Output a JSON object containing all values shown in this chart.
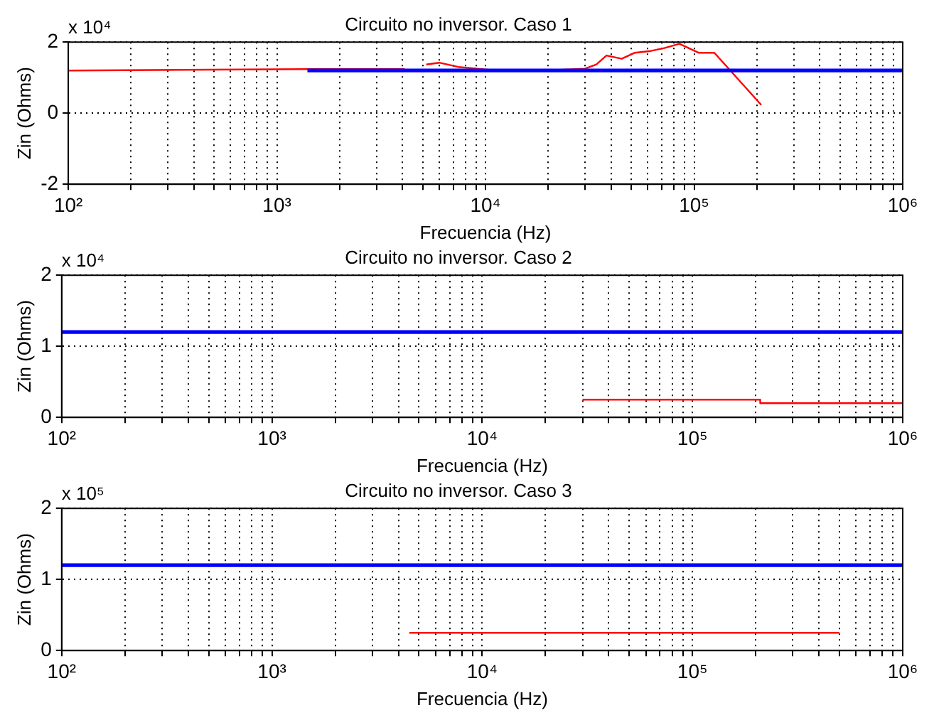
{
  "chart_data": [
    {
      "type": "line",
      "title": "Circuito no inversor. Caso 1",
      "xlabel": "Frecuencia (Hz)",
      "ylabel": "Zin (Ohms)",
      "annotations": [
        "x 10⁴"
      ],
      "log": "x",
      "grid": true,
      "legend": false,
      "marker": "none",
      "line_style": "solid",
      "xlim": [
        100,
        1000000
      ],
      "xticks": [
        {
          "value": 100,
          "label": "10²"
        },
        {
          "value": 200,
          "label": null
        },
        {
          "value": 300,
          "label": null
        },
        {
          "value": 400,
          "label": null
        },
        {
          "value": 500,
          "label": null
        },
        {
          "value": 600,
          "label": null
        },
        {
          "value": 700,
          "label": null
        },
        {
          "value": 800,
          "label": null
        },
        {
          "value": 900,
          "label": null
        },
        {
          "value": 1000,
          "label": "10³"
        },
        {
          "value": 2000,
          "label": null
        },
        {
          "value": 3000,
          "label": null
        },
        {
          "value": 4000,
          "label": null
        },
        {
          "value": 5000,
          "label": null
        },
        {
          "value": 6000,
          "label": null
        },
        {
          "value": 7000,
          "label": null
        },
        {
          "value": 8000,
          "label": null
        },
        {
          "value": 9000,
          "label": null
        },
        {
          "value": 10000,
          "label": "10⁴"
        },
        {
          "value": 20000,
          "label": null
        },
        {
          "value": 30000,
          "label": null
        },
        {
          "value": 40000,
          "label": null
        },
        {
          "value": 50000,
          "label": null
        },
        {
          "value": 60000,
          "label": null
        },
        {
          "value": 70000,
          "label": null
        },
        {
          "value": 80000,
          "label": null
        },
        {
          "value": 90000,
          "label": null
        },
        {
          "value": 100000,
          "label": "10⁵"
        },
        {
          "value": 200000,
          "label": null
        },
        {
          "value": 300000,
          "label": null
        },
        {
          "value": 400000,
          "label": null
        },
        {
          "value": 500000,
          "label": null
        },
        {
          "value": 600000,
          "label": null
        },
        {
          "value": 700000,
          "label": null
        },
        {
          "value": 800000,
          "label": null
        },
        {
          "value": 900000,
          "label": null
        },
        {
          "value": 1000000,
          "label": "10⁶"
        }
      ],
      "ylim": [
        -2,
        2
      ],
      "yticks": [
        -2,
        0,
        2
      ],
      "series": [
        {
          "color": "#0000ff",
          "x": [
            1400,
            1000000
          ],
          "values": [
            1.2,
            1.2
          ]
        },
        {
          "color": "#ff0000",
          "x": [
            100,
            1400,
            4100,
            4600,
            5200,
            6000,
            7400,
            11300,
            19000,
            30000,
            34000,
            38000,
            45000,
            52000,
            62000,
            72000,
            85000,
            105000,
            125000,
            210000
          ],
          "values": [
            1.2,
            1.24,
            1.24,
            null,
            1.37,
            1.42,
            1.3,
            1.2,
            1.2,
            1.25,
            1.37,
            1.62,
            1.53,
            1.7,
            1.75,
            1.83,
            1.95,
            1.7,
            1.7,
            0.23
          ]
        }
      ]
    },
    {
      "type": "line",
      "title": "Circuito no inversor. Caso 2",
      "xlabel": "Frecuencia (Hz)",
      "ylabel": "Zin (Ohms)",
      "annotations": [
        "x 10⁴"
      ],
      "log": "x",
      "grid": true,
      "legend": false,
      "marker": "none",
      "line_style": "solid",
      "xlim": [
        100,
        1000000
      ],
      "xticks": [
        {
          "value": 100,
          "label": "10²"
        },
        {
          "value": 200,
          "label": null
        },
        {
          "value": 300,
          "label": null
        },
        {
          "value": 400,
          "label": null
        },
        {
          "value": 500,
          "label": null
        },
        {
          "value": 600,
          "label": null
        },
        {
          "value": 700,
          "label": null
        },
        {
          "value": 800,
          "label": null
        },
        {
          "value": 900,
          "label": null
        },
        {
          "value": 1000,
          "label": "10³"
        },
        {
          "value": 2000,
          "label": null
        },
        {
          "value": 3000,
          "label": null
        },
        {
          "value": 4000,
          "label": null
        },
        {
          "value": 5000,
          "label": null
        },
        {
          "value": 6000,
          "label": null
        },
        {
          "value": 7000,
          "label": null
        },
        {
          "value": 8000,
          "label": null
        },
        {
          "value": 9000,
          "label": null
        },
        {
          "value": 10000,
          "label": "10⁴"
        },
        {
          "value": 20000,
          "label": null
        },
        {
          "value": 30000,
          "label": null
        },
        {
          "value": 40000,
          "label": null
        },
        {
          "value": 50000,
          "label": null
        },
        {
          "value": 60000,
          "label": null
        },
        {
          "value": 70000,
          "label": null
        },
        {
          "value": 80000,
          "label": null
        },
        {
          "value": 90000,
          "label": null
        },
        {
          "value": 100000,
          "label": "10⁵"
        },
        {
          "value": 200000,
          "label": null
        },
        {
          "value": 300000,
          "label": null
        },
        {
          "value": 400000,
          "label": null
        },
        {
          "value": 500000,
          "label": null
        },
        {
          "value": 600000,
          "label": null
        },
        {
          "value": 700000,
          "label": null
        },
        {
          "value": 800000,
          "label": null
        },
        {
          "value": 900000,
          "label": null
        },
        {
          "value": 1000000,
          "label": "10⁶"
        }
      ],
      "ylim": [
        0,
        2
      ],
      "yticks": [
        0,
        1,
        2
      ],
      "series": [
        {
          "color": "#0000ff",
          "x": [
            100,
            1000000
          ],
          "values": [
            1.2,
            1.2
          ]
        },
        {
          "color": "#ff0000",
          "x": [
            30000,
            210000,
            210000,
            1000000
          ],
          "values": [
            0.25,
            0.25,
            0.2,
            0.2
          ]
        }
      ]
    },
    {
      "type": "line",
      "title": "Circuito no inversor. Caso 3",
      "xlabel": "Frecuencia (Hz)",
      "ylabel": "Zin (Ohms)",
      "annotations": [
        "x 10⁵"
      ],
      "log": "x",
      "grid": true,
      "legend": false,
      "marker": "none",
      "line_style": "solid",
      "xlim": [
        100,
        1000000
      ],
      "xticks": [
        {
          "value": 100,
          "label": "10²"
        },
        {
          "value": 200,
          "label": null
        },
        {
          "value": 300,
          "label": null
        },
        {
          "value": 400,
          "label": null
        },
        {
          "value": 500,
          "label": null
        },
        {
          "value": 600,
          "label": null
        },
        {
          "value": 700,
          "label": null
        },
        {
          "value": 800,
          "label": null
        },
        {
          "value": 900,
          "label": null
        },
        {
          "value": 1000,
          "label": "10³"
        },
        {
          "value": 2000,
          "label": null
        },
        {
          "value": 3000,
          "label": null
        },
        {
          "value": 4000,
          "label": null
        },
        {
          "value": 5000,
          "label": null
        },
        {
          "value": 6000,
          "label": null
        },
        {
          "value": 7000,
          "label": null
        },
        {
          "value": 8000,
          "label": null
        },
        {
          "value": 9000,
          "label": null
        },
        {
          "value": 10000,
          "label": "10⁴"
        },
        {
          "value": 20000,
          "label": null
        },
        {
          "value": 30000,
          "label": null
        },
        {
          "value": 40000,
          "label": null
        },
        {
          "value": 50000,
          "label": null
        },
        {
          "value": 60000,
          "label": null
        },
        {
          "value": 70000,
          "label": null
        },
        {
          "value": 80000,
          "label": null
        },
        {
          "value": 90000,
          "label": null
        },
        {
          "value": 100000,
          "label": "10⁵"
        },
        {
          "value": 200000,
          "label": null
        },
        {
          "value": 300000,
          "label": null
        },
        {
          "value": 400000,
          "label": null
        },
        {
          "value": 500000,
          "label": null
        },
        {
          "value": 600000,
          "label": null
        },
        {
          "value": 700000,
          "label": null
        },
        {
          "value": 800000,
          "label": null
        },
        {
          "value": 900000,
          "label": null
        },
        {
          "value": 1000000,
          "label": "10⁶"
        }
      ],
      "ylim": [
        0,
        2
      ],
      "yticks": [
        0,
        1,
        2
      ],
      "series": [
        {
          "color": "#0000ff",
          "x": [
            100,
            1000000
          ],
          "values": [
            1.2,
            1.2
          ]
        },
        {
          "color": "#ff0000",
          "x": [
            4500,
            500000
          ],
          "values": [
            0.25,
            0.25
          ]
        }
      ]
    }
  ]
}
